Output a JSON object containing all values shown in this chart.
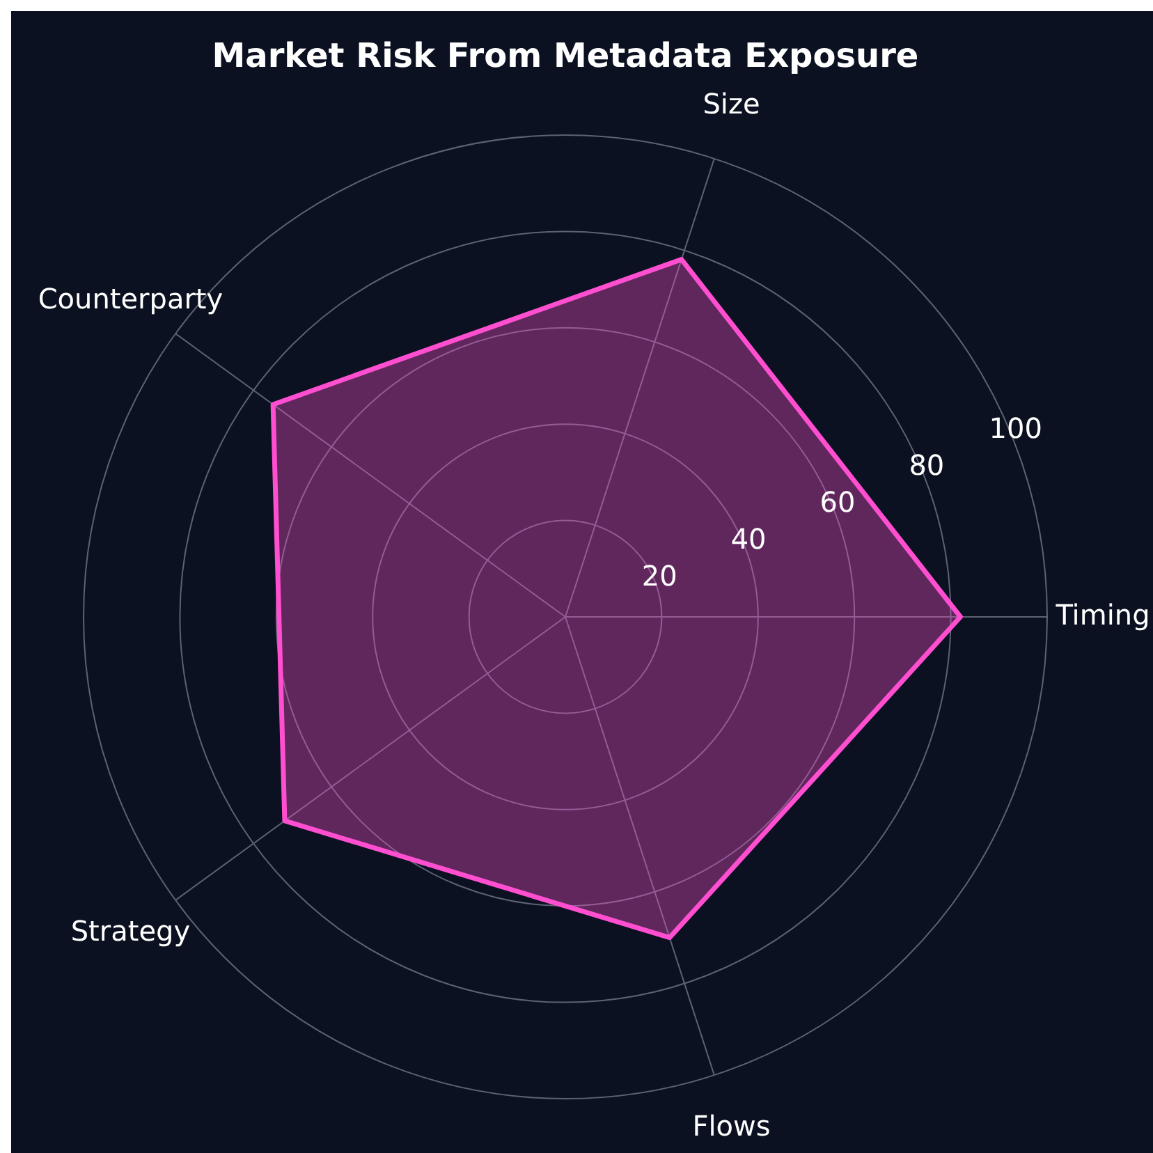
{
  "chart_data": {
    "type": "radar",
    "title": "Market Risk From Metadata Exposure",
    "categories": [
      "Size",
      "Timing",
      "Flows",
      "Strategy",
      "Counterparty"
    ],
    "series": [
      {
        "color": "#ff4fd0",
        "values": [
          78,
          82,
          70,
          72,
          75
        ]
      }
    ],
    "ylim": [
      0,
      100
    ],
    "yticks": [
      20,
      40,
      60,
      80,
      100
    ],
    "grid": true
  }
}
